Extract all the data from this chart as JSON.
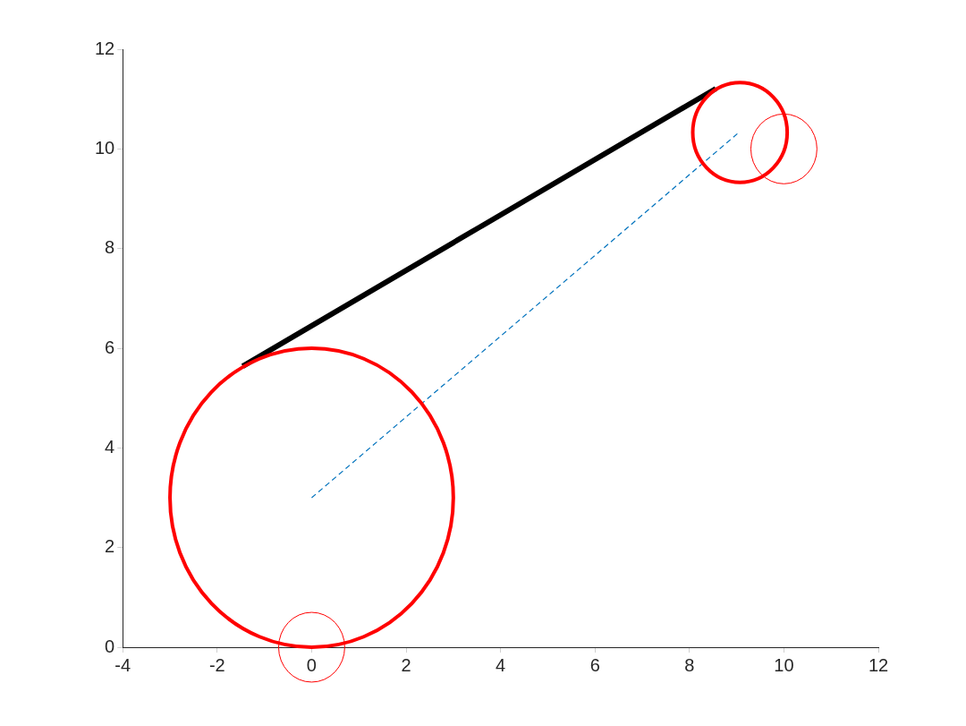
{
  "chart_data": {
    "type": "line",
    "xlim": [
      -4,
      12
    ],
    "ylim": [
      0,
      12
    ],
    "xticks": [
      -4,
      -2,
      0,
      2,
      4,
      6,
      8,
      10,
      12
    ],
    "yticks": [
      0,
      2,
      4,
      6,
      8,
      10,
      12
    ],
    "grid": false,
    "legend": false,
    "marker": "none",
    "series": [
      {
        "color": "#000000",
        "line_style": "solid",
        "x": [
          -1.46,
          8.56
        ],
        "values": [
          5.64,
          11.21
        ]
      },
      {
        "color": "#0072bd",
        "line_style": "dashed",
        "x": [
          0,
          9.07
        ],
        "values": [
          3,
          10.35
        ]
      }
    ]
  }
}
